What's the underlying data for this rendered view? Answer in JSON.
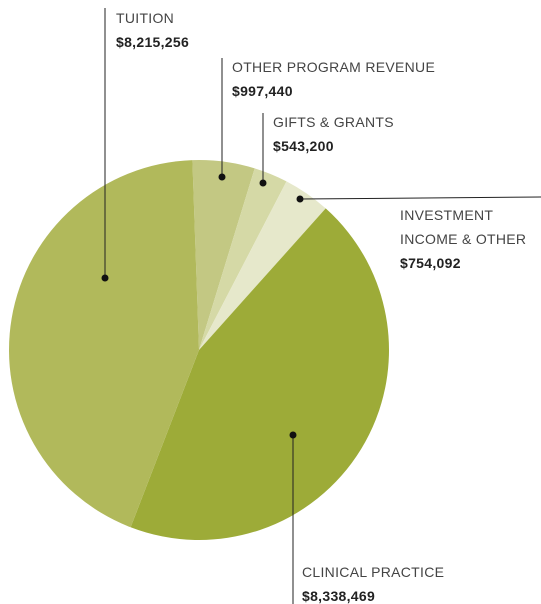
{
  "chart_data": {
    "type": "pie",
    "categories": [
      "OTHER PROGRAM REVENUE",
      "GIFTS & GRANTS",
      "INVESTMENT INCOME & OTHER",
      "CLINICAL PRACTICE",
      "TUITION"
    ],
    "values": [
      997440,
      543200,
      754092,
      8338469,
      8215256
    ],
    "value_labels": [
      "$997,440",
      "$543,200",
      "$754,092",
      "$8,338,469",
      "$8,215,256"
    ],
    "colors": [
      "#c3c883",
      "#d5d9a6",
      "#e6e8cb",
      "#9dab38",
      "#b1b95b"
    ]
  }
}
